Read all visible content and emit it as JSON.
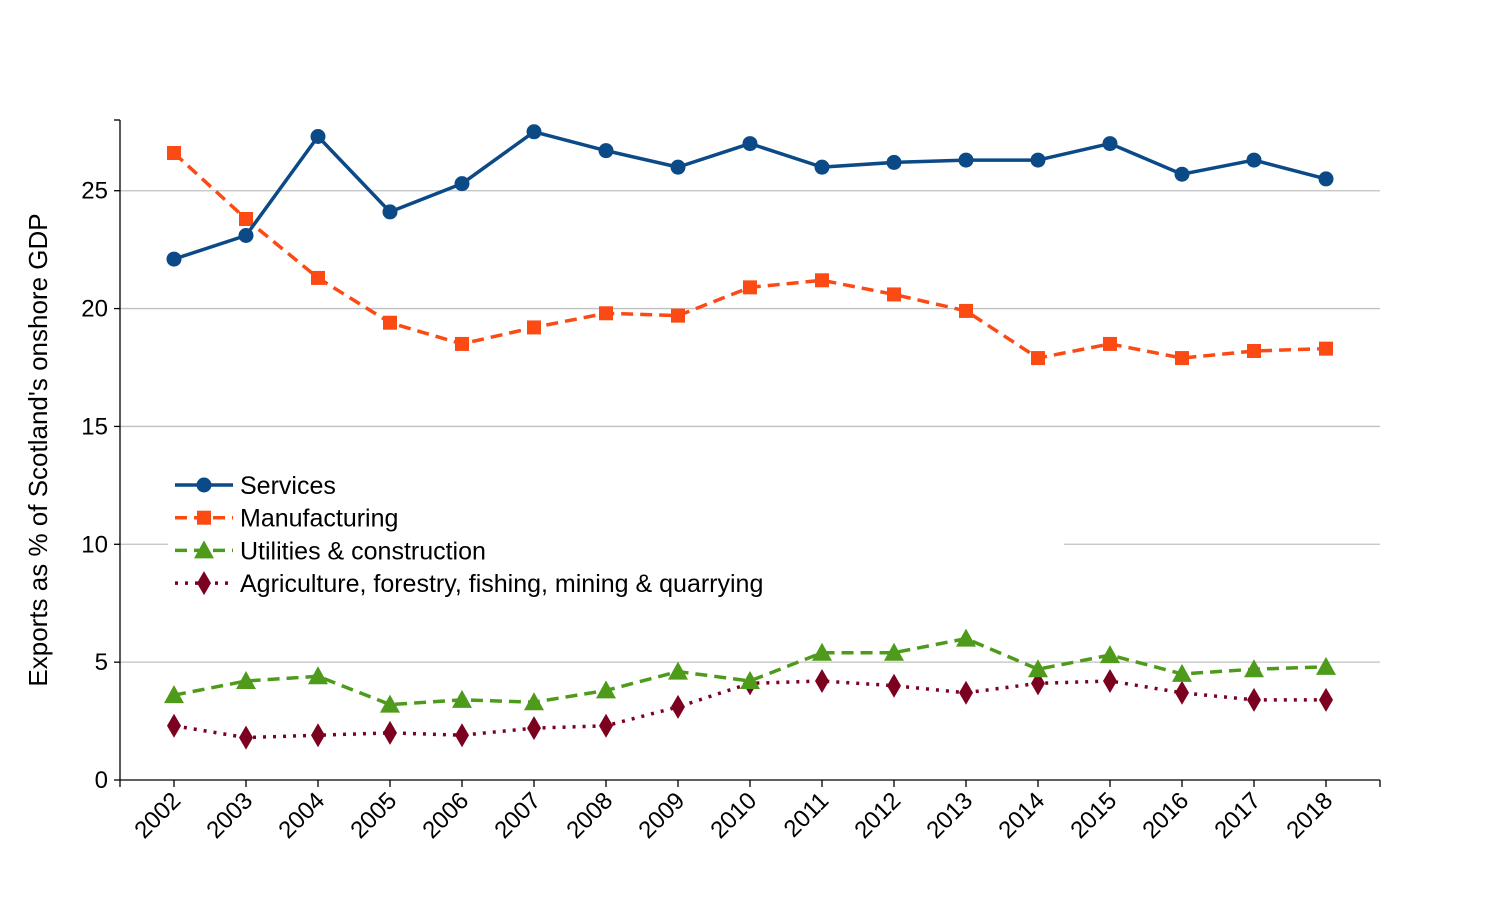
{
  "chart_data": {
    "type": "line",
    "title": "",
    "xlabel": "",
    "ylabel": "Exports as % of Scotland's onshore GDP",
    "ylim": [
      0,
      28
    ],
    "yticks": [
      0,
      5,
      10,
      15,
      20,
      25
    ],
    "grid": "horizontal",
    "legend_position": "center-left",
    "x": [
      "2002",
      "2003",
      "2004",
      "2005",
      "2006",
      "2007",
      "2008",
      "2009",
      "2010",
      "2011",
      "2012",
      "2013",
      "2014",
      "2015",
      "2016",
      "2017",
      "2018"
    ],
    "series": [
      {
        "name": "Services",
        "color": "#0b4a86",
        "line_style": "solid",
        "marker": "circle",
        "values": [
          22.1,
          23.1,
          27.3,
          24.1,
          25.3,
          27.5,
          26.7,
          26.0,
          27.0,
          26.0,
          26.2,
          26.3,
          26.3,
          27.0,
          25.7,
          26.3,
          25.5
        ]
      },
      {
        "name": "Manufacturing",
        "color": "#fc4a15",
        "line_style": "dashed",
        "marker": "square",
        "values": [
          26.6,
          23.8,
          21.3,
          19.4,
          18.5,
          19.2,
          19.8,
          19.7,
          20.9,
          21.2,
          20.6,
          19.9,
          17.9,
          18.5,
          17.9,
          18.2,
          18.3
        ]
      },
      {
        "name": "Utilities & construction",
        "color": "#4e9b1c",
        "line_style": "dashed",
        "marker": "triangle",
        "values": [
          3.6,
          4.2,
          4.4,
          3.2,
          3.4,
          3.3,
          3.8,
          4.6,
          4.2,
          5.4,
          5.4,
          6.0,
          4.7,
          5.3,
          4.5,
          4.7,
          4.8
        ]
      },
      {
        "name": "Agriculture, forestry, fishing, mining & quarrying",
        "color": "#7c0020",
        "line_style": "dotted",
        "marker": "diamond",
        "values": [
          2.3,
          1.8,
          1.9,
          2.0,
          1.9,
          2.2,
          2.3,
          3.1,
          4.1,
          4.2,
          4.0,
          3.7,
          4.1,
          4.2,
          3.7,
          3.4,
          3.4
        ]
      }
    ]
  }
}
